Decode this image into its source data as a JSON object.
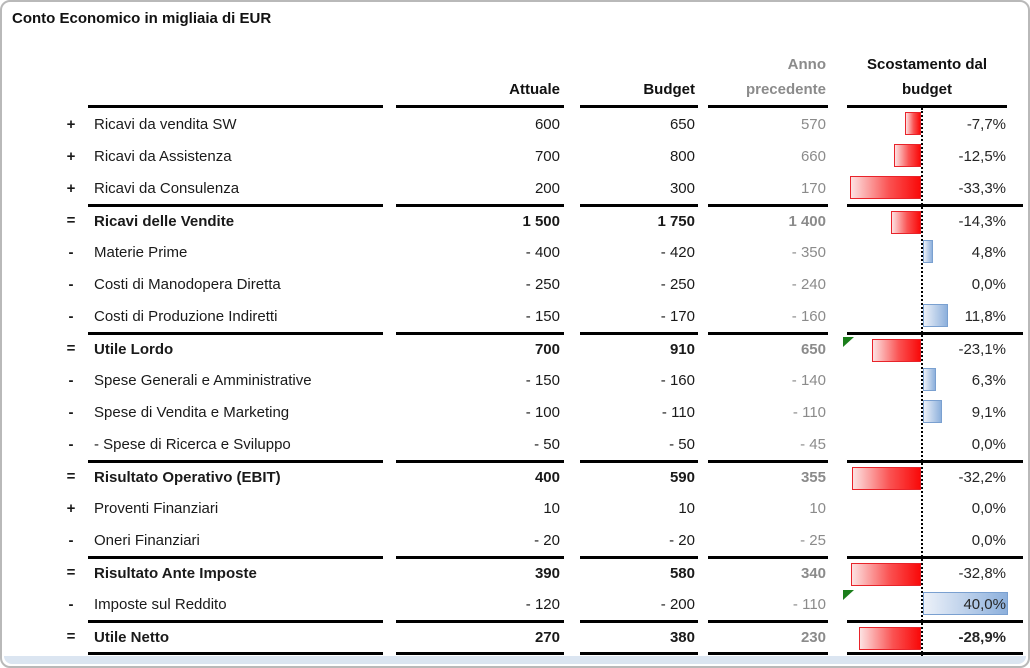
{
  "title": "Conto Economico in migliaia di EUR",
  "columns": {
    "actual": "Attuale",
    "budget": "Budget",
    "prev_line1": "Anno",
    "prev_line2": "precedente",
    "variance_line1": "Scostamento dal",
    "variance_line2": "budget"
  },
  "colors": {
    "negative_bar": "#f90a0a",
    "negative_bar_border": "#e8232a",
    "positive_bar": "#8db0dc",
    "positive_bar_border": "#7aa0d0",
    "flag_green": "#1b7e1b",
    "muted_gray": "#8b8b8b",
    "strip_blue": "#dbe5f1"
  },
  "rows": [
    {
      "sign": "+",
      "label": "Ricavi da vendita SW",
      "actual": "600",
      "budget": "650",
      "prev": "570",
      "pct": "-7,7%",
      "variance": -7.7,
      "total": false,
      "flag": false,
      "final": false
    },
    {
      "sign": "+",
      "label": "Ricavi da Assistenza",
      "actual": "700",
      "budget": "800",
      "prev": "660",
      "pct": "-12,5%",
      "variance": -12.5,
      "total": false,
      "flag": false,
      "final": false
    },
    {
      "sign": "+",
      "label": "Ricavi da Consulenza",
      "actual": "200",
      "budget": "300",
      "prev": "170",
      "pct": "-33,3%",
      "variance": -33.3,
      "total": false,
      "flag": false,
      "final": false
    },
    {
      "sign": "=",
      "label": "Ricavi delle Vendite",
      "actual": "1 500",
      "budget": "1 750",
      "prev": "1 400",
      "pct": "-14,3%",
      "variance": -14.3,
      "total": true,
      "flag": false,
      "final": false
    },
    {
      "sign": "-",
      "label": "Materie Prime",
      "actual": "- 400",
      "budget": "- 420",
      "prev": "- 350",
      "pct": "4,8%",
      "variance": 4.8,
      "total": false,
      "flag": false,
      "final": false
    },
    {
      "sign": "-",
      "label": "Costi di Manodopera Diretta",
      "actual": "- 250",
      "budget": "- 250",
      "prev": "- 240",
      "pct": "0,0%",
      "variance": 0,
      "total": false,
      "flag": false,
      "final": false
    },
    {
      "sign": "-",
      "label": "Costi di Produzione Indiretti",
      "actual": "- 150",
      "budget": "- 170",
      "prev": "- 160",
      "pct": "11,8%",
      "variance": 11.8,
      "total": false,
      "flag": false,
      "final": false
    },
    {
      "sign": "=",
      "label": "Utile Lordo",
      "actual": "700",
      "budget": "910",
      "prev": "650",
      "pct": "-23,1%",
      "variance": -23.1,
      "total": true,
      "flag": true,
      "final": false
    },
    {
      "sign": "-",
      "label": "Spese Generali e Amministrative",
      "actual": "- 150",
      "budget": "- 160",
      "prev": "- 140",
      "pct": "6,3%",
      "variance": 6.3,
      "total": false,
      "flag": false,
      "final": false
    },
    {
      "sign": "-",
      "label": "Spese di Vendita e Marketing",
      "actual": "- 100",
      "budget": "- 110",
      "prev": "- 110",
      "pct": "9,1%",
      "variance": 9.1,
      "total": false,
      "flag": false,
      "final": false
    },
    {
      "sign": "-",
      "label": "- Spese di Ricerca e Sviluppo",
      "actual": "- 50",
      "budget": "- 50",
      "prev": "- 45",
      "pct": "0,0%",
      "variance": 0,
      "total": false,
      "flag": false,
      "final": false
    },
    {
      "sign": "=",
      "label": "Risultato Operativo (EBIT)",
      "actual": "400",
      "budget": "590",
      "prev": "355",
      "pct": "-32,2%",
      "variance": -32.2,
      "total": true,
      "flag": false,
      "final": false
    },
    {
      "sign": "+",
      "label": "Proventi Finanziari",
      "actual": "10",
      "budget": "10",
      "prev": "10",
      "pct": "0,0%",
      "variance": 0,
      "total": false,
      "flag": false,
      "final": false
    },
    {
      "sign": "-",
      "label": "Oneri Finanziari",
      "actual": "- 20",
      "budget": "- 20",
      "prev": "- 25",
      "pct": "0,0%",
      "variance": 0,
      "total": false,
      "flag": false,
      "final": false
    },
    {
      "sign": "=",
      "label": "Risultato Ante Imposte",
      "actual": "390",
      "budget": "580",
      "prev": "340",
      "pct": "-32,8%",
      "variance": -32.8,
      "total": true,
      "flag": false,
      "final": false
    },
    {
      "sign": "-",
      "label": "Imposte sul Reddito",
      "actual": "- 120",
      "budget": "- 200",
      "prev": "- 110",
      "pct": "40,0%",
      "variance": 40.0,
      "total": false,
      "flag": true,
      "final": false
    },
    {
      "sign": "=",
      "label": "Utile Netto",
      "actual": "270",
      "budget": "380",
      "prev": "230",
      "pct": "-28,9%",
      "variance": -28.9,
      "total": true,
      "flag": false,
      "final": true
    }
  ],
  "chart_data": {
    "type": "table",
    "title": "Conto Economico in migliaia di EUR",
    "unit": "migliaia di EUR",
    "columns": [
      "Attuale",
      "Budget",
      "Anno precedente",
      "Scostamento dal budget"
    ],
    "categories": [
      "Ricavi da vendita SW",
      "Ricavi da Assistenza",
      "Ricavi da Consulenza",
      "Ricavi delle Vendite",
      "Materie Prime",
      "Costi di Manodopera Diretta",
      "Costi di Produzione Indiretti",
      "Utile Lordo",
      "Spese Generali e Amministrative",
      "Spese di Vendita e Marketing",
      "- Spese di Ricerca e Sviluppo",
      "Risultato Operativo (EBIT)",
      "Proventi Finanziari",
      "Oneri Finanziari",
      "Risultato Ante Imposte",
      "Imposte sul Reddito",
      "Utile Netto"
    ],
    "row_signs": [
      "+",
      "+",
      "+",
      "=",
      "-",
      "-",
      "-",
      "=",
      "-",
      "-",
      "-",
      "=",
      "+",
      "-",
      "=",
      "-",
      "="
    ],
    "series": [
      {
        "name": "Attuale",
        "values": [
          600,
          700,
          200,
          1500,
          -400,
          -250,
          -150,
          700,
          -150,
          -100,
          -50,
          400,
          10,
          -20,
          390,
          -120,
          270
        ]
      },
      {
        "name": "Budget",
        "values": [
          650,
          800,
          300,
          1750,
          -420,
          -250,
          -170,
          910,
          -160,
          -110,
          -50,
          590,
          10,
          -20,
          580,
          -200,
          380
        ]
      },
      {
        "name": "Anno precedente",
        "values": [
          570,
          660,
          170,
          1400,
          -350,
          -240,
          -160,
          650,
          -140,
          -110,
          -45,
          355,
          10,
          -25,
          340,
          -110,
          230
        ]
      },
      {
        "name": "Scostamento dal budget %",
        "type": "bar",
        "values": [
          -7.7,
          -12.5,
          -33.3,
          -14.3,
          4.8,
          0.0,
          11.8,
          -23.1,
          6.3,
          9.1,
          0.0,
          -32.2,
          0.0,
          0.0,
          -32.8,
          40.0,
          -28.9
        ]
      }
    ],
    "bar_colors": {
      "negative": "red",
      "positive": "blue"
    },
    "flag_rows": [
      "Utile Lordo",
      "Imposte sul Reddito"
    ],
    "layout": "variance bars plotted around a dotted zero axis, negative bars extend left in red, positive bars extend right in blue"
  }
}
